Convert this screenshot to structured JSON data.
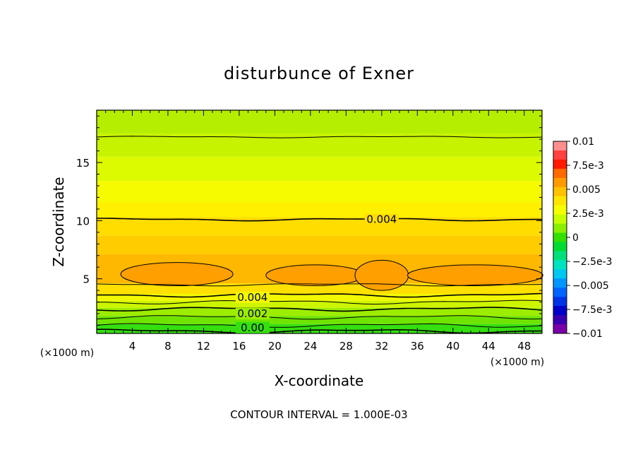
{
  "chart_data": {
    "type": "heatmap",
    "title": "disturbunce of Exner",
    "xlabel": "X-coordinate",
    "ylabel": "Z-coordinate",
    "x_unit": "(×1000 m)",
    "y_unit": "(×1000 m)",
    "xlim": [
      0,
      50
    ],
    "ylim": [
      0.3,
      19.5
    ],
    "x_ticks": [
      "4",
      "8",
      "12",
      "16",
      "20",
      "24",
      "28",
      "32",
      "36",
      "40",
      "44",
      "48"
    ],
    "y_ticks": [
      "5",
      "10",
      "15"
    ],
    "colorbar": {
      "labels": [
        "0.01",
        "7.5e-3",
        "0.005",
        "2.5e-3",
        "0",
        "−2.5e-3",
        "−0.005",
        "−7.5e-3",
        "−0.01"
      ],
      "range": [
        -0.01,
        0.01
      ],
      "colors_top_to_bottom": [
        "#ff8f8f",
        "#ff4040",
        "#ff1a00",
        "#ff6a00",
        "#ff9a00",
        "#ffc200",
        "#ffe600",
        "#f4ff00",
        "#c8ff00",
        "#8af000",
        "#33e000",
        "#00dc33",
        "#00e07a",
        "#00e3c0",
        "#00c8f0",
        "#0096ff",
        "#0064ff",
        "#0032e6",
        "#0000c8",
        "#3800b0",
        "#7a00a8"
      ]
    },
    "contour_interval": "CONTOUR INTERVAL = 1.000E-03",
    "contour_labels": [
      "0.004",
      "0.004",
      "0.002",
      "0.00"
    ],
    "bands": [
      {
        "z_bottom": 17.5,
        "z_top": 19.5,
        "color": "#b6ee00"
      },
      {
        "z_bottom": 15.5,
        "z_top": 17.5,
        "color": "#c6f400"
      },
      {
        "z_bottom": 13.4,
        "z_top": 15.5,
        "color": "#dcfa00"
      },
      {
        "z_bottom": 11.6,
        "z_top": 13.4,
        "color": "#f6fb00"
      },
      {
        "z_bottom": 10.3,
        "z_top": 11.6,
        "color": "#fff000"
      },
      {
        "z_bottom": 8.7,
        "z_top": 10.3,
        "color": "#ffdd00"
      },
      {
        "z_bottom": 7.1,
        "z_top": 8.7,
        "color": "#ffcc00"
      },
      {
        "z_bottom": 4.6,
        "z_top": 7.1,
        "color": "#ffb800"
      },
      {
        "z_bottom": 3.7,
        "z_top": 4.6,
        "color": "#ffe000"
      },
      {
        "z_bottom": 3.1,
        "z_top": 3.7,
        "color": "#f2f800"
      },
      {
        "z_bottom": 2.5,
        "z_top": 3.1,
        "color": "#cdf500"
      },
      {
        "z_bottom": 1.8,
        "z_top": 2.5,
        "color": "#9ced00"
      },
      {
        "z_bottom": 1.1,
        "z_top": 1.8,
        "color": "#6ee400"
      },
      {
        "z_bottom": 0.3,
        "z_top": 1.1,
        "color": "#35df10"
      }
    ],
    "contours_z": [
      17.2,
      10.1,
      4.5,
      3.6,
      3.0,
      2.4,
      1.7,
      1.0,
      0.5
    ],
    "max_cells": [
      {
        "x_center": 9,
        "z_center": 5.4,
        "x_half_width": 6.3,
        "z_half_height": 1.0
      },
      {
        "x_center": 24.5,
        "z_center": 5.3,
        "x_half_width": 5.5,
        "z_half_height": 0.9
      },
      {
        "x_center": 32,
        "z_center": 5.3,
        "x_half_width": 3.0,
        "z_half_height": 1.3
      },
      {
        "x_center": 42.5,
        "z_center": 5.3,
        "x_half_width": 7.6,
        "z_half_height": 0.9
      }
    ],
    "max_cell_color": "#ffa000",
    "grid": false
  }
}
